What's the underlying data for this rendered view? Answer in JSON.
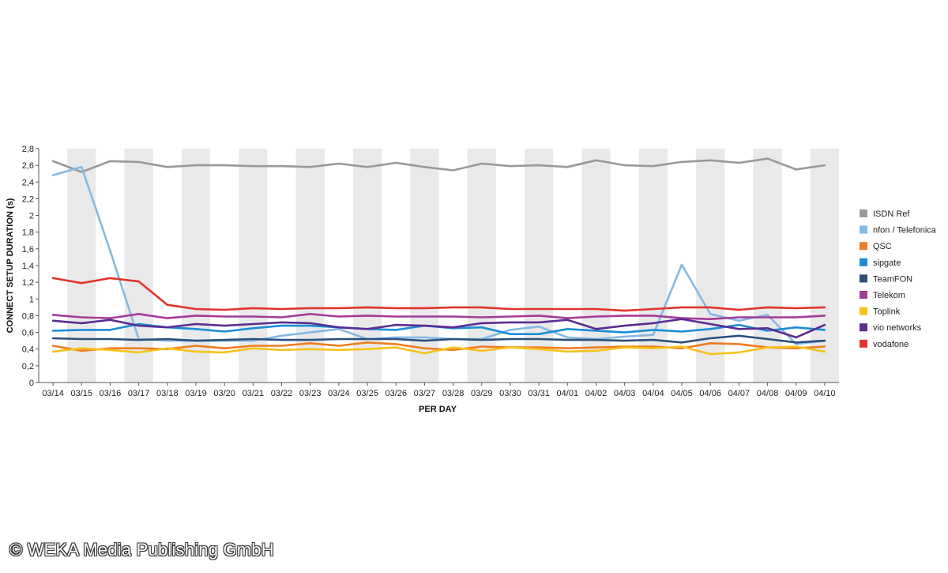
{
  "chart_data": {
    "type": "line",
    "title": "",
    "xlabel": "PER DAY",
    "ylabel": "CONNECT SETUP DURATION (s)",
    "ylim": [
      0,
      2.8
    ],
    "yticks": [
      "0",
      "0,2",
      "0,4",
      "0,6",
      "0,8",
      "1",
      "1,2",
      "1,4",
      "1,6",
      "1,8",
      "2",
      "2,2",
      "2,4",
      "2,6",
      "2,8"
    ],
    "categories": [
      "03/14",
      "03/15",
      "03/16",
      "03/17",
      "03/18",
      "03/19",
      "03/20",
      "03/21",
      "03/22",
      "03/23",
      "03/24",
      "03/25",
      "03/26",
      "03/27",
      "03/28",
      "03/29",
      "03/30",
      "03/31",
      "04/01",
      "04/02",
      "04/03",
      "04/04",
      "04/05",
      "04/06",
      "04/07",
      "04/08",
      "04/09",
      "04/10"
    ],
    "grid": "alternating vertical bands",
    "legend_position": "right",
    "series": [
      {
        "name": "ISDN Ref",
        "color": "#999999",
        "values": [
          2.65,
          2.52,
          2.65,
          2.64,
          2.58,
          2.6,
          2.6,
          2.59,
          2.59,
          2.58,
          2.62,
          2.58,
          2.63,
          2.58,
          2.54,
          2.62,
          2.59,
          2.6,
          2.58,
          2.66,
          2.6,
          2.59,
          2.64,
          2.66,
          2.63,
          2.68,
          2.55,
          2.6
        ]
      },
      {
        "name": "nfon / Telefonica",
        "color": "#85b9e2",
        "values": [
          2.48,
          2.58,
          1.58,
          0.52,
          0.5,
          0.5,
          0.5,
          0.5,
          0.56,
          0.6,
          0.64,
          0.52,
          0.54,
          0.54,
          0.52,
          0.52,
          0.63,
          0.67,
          0.54,
          0.52,
          0.55,
          0.57,
          1.41,
          0.82,
          0.74,
          0.81,
          0.46,
          0.5
        ]
      },
      {
        "name": "QSC",
        "color": "#ef7d22",
        "values": [
          0.44,
          0.38,
          0.41,
          0.41,
          0.4,
          0.44,
          0.41,
          0.44,
          0.44,
          0.47,
          0.44,
          0.48,
          0.46,
          0.41,
          0.39,
          0.43,
          0.42,
          0.42,
          0.41,
          0.42,
          0.43,
          0.43,
          0.41,
          0.47,
          0.46,
          0.42,
          0.41,
          0.43
        ]
      },
      {
        "name": "sipgate",
        "color": "#1a8ed6",
        "values": [
          0.62,
          0.63,
          0.63,
          0.7,
          0.66,
          0.64,
          0.61,
          0.65,
          0.68,
          0.68,
          0.66,
          0.64,
          0.63,
          0.68,
          0.65,
          0.66,
          0.58,
          0.58,
          0.64,
          0.62,
          0.6,
          0.63,
          0.61,
          0.64,
          0.69,
          0.62,
          0.66,
          0.63
        ]
      },
      {
        "name": "TeamFON",
        "color": "#2c4f7c",
        "values": [
          0.53,
          0.52,
          0.52,
          0.51,
          0.52,
          0.5,
          0.51,
          0.52,
          0.51,
          0.51,
          0.52,
          0.52,
          0.52,
          0.5,
          0.52,
          0.51,
          0.52,
          0.52,
          0.51,
          0.51,
          0.5,
          0.51,
          0.48,
          0.53,
          0.56,
          0.52,
          0.48,
          0.5
        ]
      },
      {
        "name": "Telekom",
        "color": "#a43b98",
        "values": [
          0.81,
          0.78,
          0.77,
          0.82,
          0.77,
          0.8,
          0.79,
          0.79,
          0.78,
          0.82,
          0.79,
          0.8,
          0.79,
          0.79,
          0.79,
          0.78,
          0.79,
          0.8,
          0.77,
          0.79,
          0.8,
          0.8,
          0.77,
          0.76,
          0.78,
          0.78,
          0.78,
          0.8
        ]
      },
      {
        "name": "Toplink",
        "color": "#f7c21b",
        "values": [
          0.37,
          0.41,
          0.39,
          0.36,
          0.41,
          0.37,
          0.36,
          0.41,
          0.39,
          0.4,
          0.39,
          0.4,
          0.42,
          0.35,
          0.42,
          0.38,
          0.42,
          0.4,
          0.37,
          0.38,
          0.42,
          0.41,
          0.43,
          0.34,
          0.36,
          0.42,
          0.43,
          0.37
        ]
      },
      {
        "name": "vio networks",
        "color": "#5a2d91",
        "values": [
          0.74,
          0.71,
          0.75,
          0.68,
          0.66,
          0.7,
          0.68,
          0.7,
          0.72,
          0.71,
          0.66,
          0.64,
          0.69,
          0.68,
          0.66,
          0.71,
          0.72,
          0.72,
          0.75,
          0.64,
          0.68,
          0.71,
          0.76,
          0.7,
          0.64,
          0.65,
          0.54,
          0.69
        ]
      },
      {
        "name": "vodafone",
        "color": "#e03529",
        "values": [
          1.25,
          1.19,
          1.25,
          1.21,
          0.93,
          0.88,
          0.87,
          0.89,
          0.88,
          0.89,
          0.89,
          0.9,
          0.89,
          0.89,
          0.9,
          0.9,
          0.88,
          0.88,
          0.88,
          0.88,
          0.86,
          0.88,
          0.9,
          0.9,
          0.87,
          0.9,
          0.89,
          0.9
        ]
      }
    ]
  },
  "watermark": "© WEKA Media Publishing GmbH"
}
